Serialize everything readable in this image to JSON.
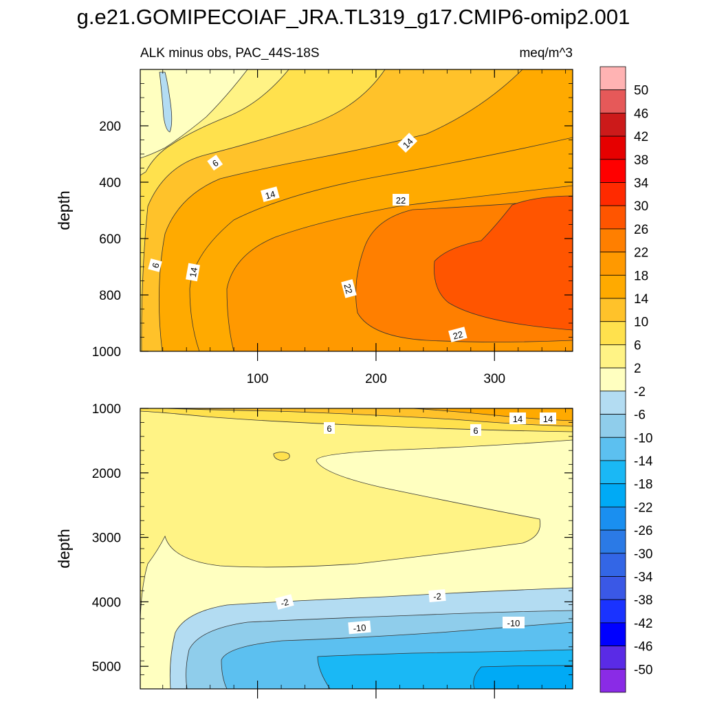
{
  "chart_data": {
    "type": "contour",
    "title": "g.e21.GOMIPECOIAF_JRA.TL319_g17.CMIP6-omip2.001",
    "subtitle_left": "ALK minus obs, PAC_44S-18S",
    "subtitle_right": "meq/m^3",
    "ylabel": "depth",
    "x_range": [
      1,
      366
    ],
    "x_ticks": [
      "100",
      "200",
      "300"
    ],
    "colorbar": {
      "labels": [
        "50",
        "46",
        "42",
        "38",
        "34",
        "30",
        "26",
        "22",
        "18",
        "14",
        "10",
        "6",
        "2",
        "-2",
        "-6",
        "-10",
        "-14",
        "-18",
        "-22",
        "-26",
        "-30",
        "-34",
        "-38",
        "-42",
        "-46",
        "-50"
      ],
      "colors": [
        "#ffb3b3",
        "#e65959",
        "#cc1a1a",
        "#e60000",
        "#ff0000",
        "#ff2a00",
        "#ff5500",
        "#ff7f00",
        "#ff9900",
        "#ffaa00",
        "#ffc22a",
        "#ffe14d",
        "#fff385",
        "#ffffc0",
        "#b3dcf2",
        "#8fcdeb",
        "#5cc0f0",
        "#1ab8f5",
        "#00aaf5",
        "#1a8ff0",
        "#2b7ae6",
        "#3366e6",
        "#3a58e6",
        "#1a33ff",
        "#0000ff",
        "#5a2be6",
        "#8a2be6"
      ]
    },
    "panels": [
      {
        "name": "upper",
        "y_range": [
          0,
          1000
        ],
        "y_ticks": [
          "200",
          "400",
          "600",
          "800",
          "1000"
        ],
        "contour_labels": [
          "6",
          "14",
          "6",
          "14",
          "22",
          "14",
          "22",
          "22"
        ]
      },
      {
        "name": "lower",
        "y_range": [
          1000,
          5350
        ],
        "y_ticks": [
          "1000",
          "2000",
          "3000",
          "4000",
          "5000"
        ],
        "contour_labels": [
          "6",
          "6",
          "14",
          "14",
          "-2",
          "-2",
          "-10",
          "-10"
        ]
      }
    ]
  }
}
